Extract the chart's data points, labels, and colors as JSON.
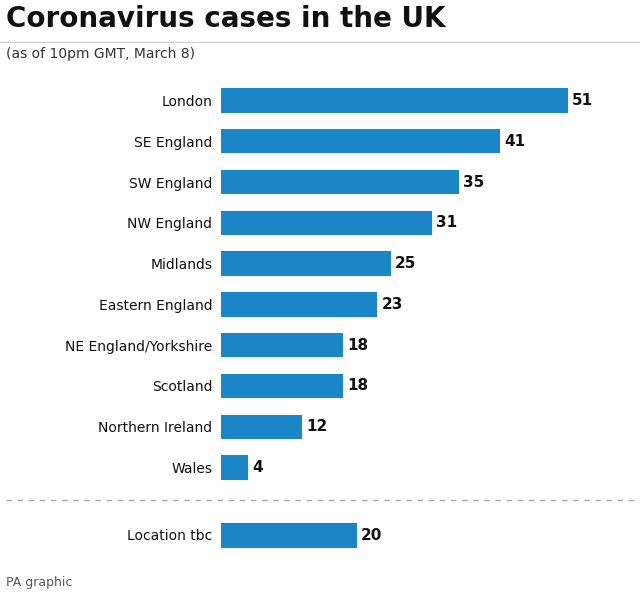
{
  "title": "Coronavirus cases in the UK",
  "subtitle": "(as of 10pm GMT, March 8)",
  "footer": "PA graphic",
  "bar_color": "#1a86c7",
  "background_color": "#ffffff",
  "text_color": "#111111",
  "subtitle_color": "#333333",
  "footer_color": "#555555",
  "main_categories": [
    "London",
    "SE England",
    "SW England",
    "NW England",
    "Midlands",
    "Eastern England",
    "NE England/Yorkshire",
    "Scotland",
    "Northern Ireland",
    "Wales"
  ],
  "main_values": [
    51,
    41,
    35,
    31,
    25,
    23,
    18,
    18,
    12,
    4
  ],
  "extra_categories": [
    "Location tbc"
  ],
  "extra_values": [
    20
  ],
  "max_value": 55,
  "title_fontsize": 20,
  "subtitle_fontsize": 10,
  "label_fontsize": 10,
  "value_fontsize": 11,
  "footer_fontsize": 9,
  "bar_height": 0.6
}
